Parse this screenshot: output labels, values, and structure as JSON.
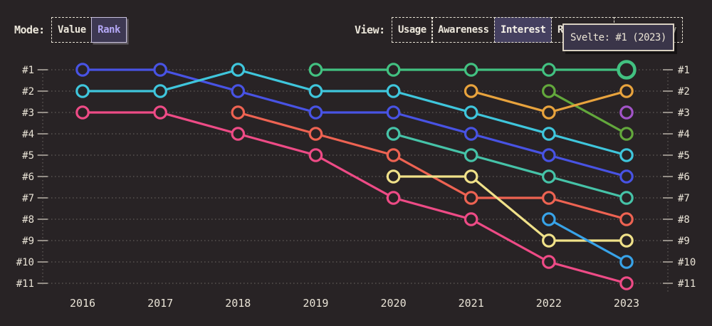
{
  "page": {
    "background": "#282325",
    "text_color": "#e9e3d6"
  },
  "controls": {
    "mode": {
      "label": "Mode:",
      "options": [
        {
          "label": "Value",
          "selected": false
        },
        {
          "label": "Rank",
          "selected": true
        }
      ],
      "selected_color": "#b3a7f5",
      "selected_bg": "#3d3852"
    },
    "view": {
      "label": "View:",
      "options": [
        {
          "label": "Usage",
          "selected": false
        },
        {
          "label": "Awareness",
          "selected": false
        },
        {
          "label": "Interest",
          "selected": true
        },
        {
          "label": "Retention",
          "selected": false
        },
        {
          "label": "Positivity",
          "selected": false
        }
      ],
      "selected_bg": "#454060"
    }
  },
  "tooltip": {
    "text": "Svelte: #1 (2023)",
    "bg": "#3a3549",
    "border": "#d9d0c1"
  },
  "chart_data": {
    "type": "line",
    "variant": "bump-rank-chart",
    "x": [
      "2016",
      "2017",
      "2018",
      "2019",
      "2020",
      "2021",
      "2022",
      "2023"
    ],
    "rank_labels": [
      "#1",
      "#2",
      "#3",
      "#4",
      "#5",
      "#6",
      "#7",
      "#8",
      "#9",
      "#10",
      "#11"
    ],
    "ylim": [
      1,
      11
    ],
    "grid": "dotted-horizontal-per-rank",
    "legend": "none",
    "series": [
      {
        "name": "indigo",
        "color": "#4853e4",
        "ranks": [
          1,
          1,
          2,
          3,
          3,
          4,
          5,
          6
        ]
      },
      {
        "name": "cyan",
        "color": "#3fc6dc",
        "ranks": [
          2,
          2,
          1,
          2,
          2,
          3,
          4,
          5
        ]
      },
      {
        "name": "pink",
        "color": "#ee4b86",
        "ranks": [
          3,
          3,
          4,
          5,
          7,
          8,
          10,
          11
        ]
      },
      {
        "name": "coral",
        "color": "#ee6352",
        "ranks": [
          null,
          null,
          3,
          4,
          5,
          7,
          7,
          8
        ]
      },
      {
        "name": "teal",
        "color": "#46c3a8",
        "ranks": [
          null,
          null,
          null,
          null,
          4,
          5,
          6,
          7
        ]
      },
      {
        "name": "yellow",
        "color": "#f0e189",
        "ranks": [
          null,
          null,
          null,
          null,
          6,
          6,
          9,
          9
        ]
      },
      {
        "name": "sky",
        "color": "#38a3e8",
        "ranks": [
          null,
          null,
          null,
          null,
          null,
          null,
          8,
          10
        ]
      },
      {
        "name": "lime",
        "color": "#63a83c",
        "ranks": [
          null,
          null,
          null,
          null,
          null,
          null,
          2,
          4
        ]
      },
      {
        "name": "orange",
        "color": "#e8a33d",
        "ranks": [
          null,
          null,
          null,
          null,
          null,
          2,
          3,
          2
        ]
      },
      {
        "name": "purple",
        "color": "#a254c8",
        "ranks": [
          null,
          null,
          null,
          null,
          null,
          null,
          null,
          3
        ]
      },
      {
        "name": "green",
        "color": "#42c181",
        "ranks": [
          null,
          null,
          null,
          1,
          1,
          1,
          1,
          1
        ]
      }
    ],
    "highlight": {
      "series": "green",
      "x": "2023",
      "rank": 1,
      "tooltip": "Svelte: #1 (2023)"
    }
  }
}
